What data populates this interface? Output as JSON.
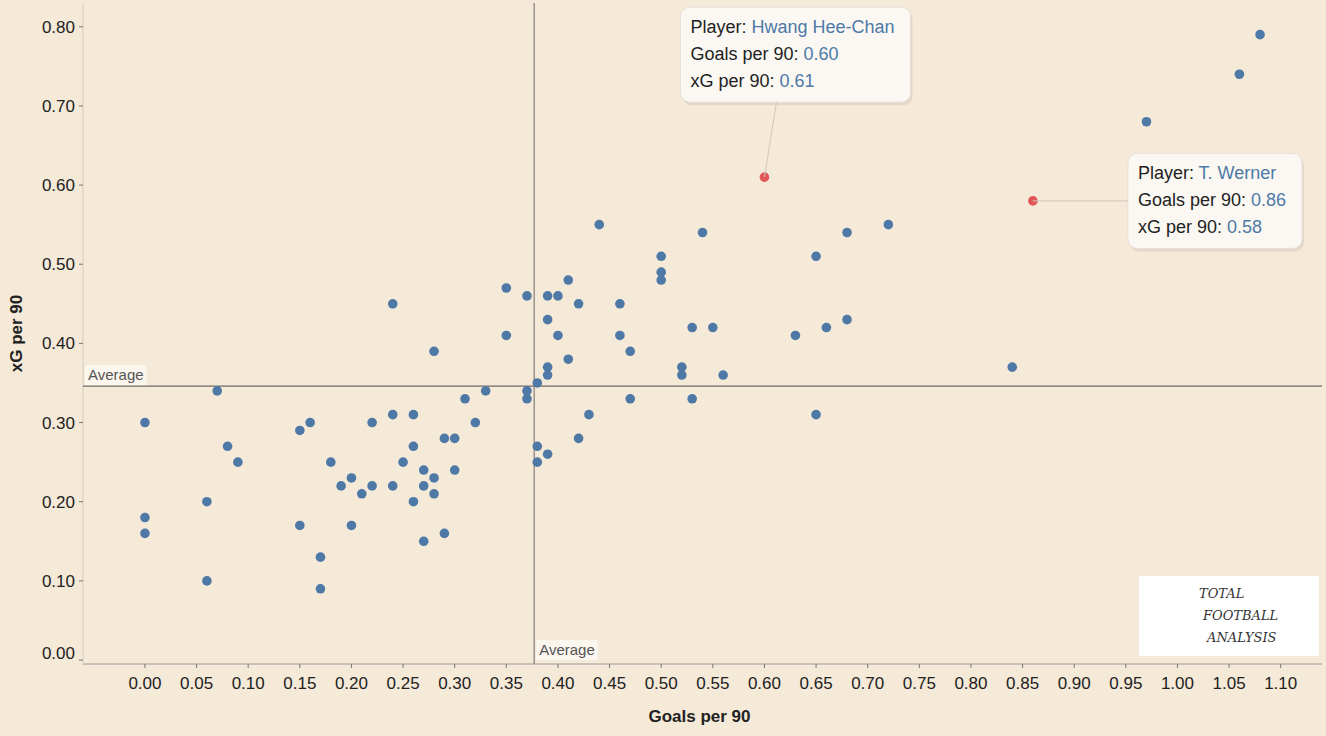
{
  "chart_data": {
    "type": "scatter",
    "x_label": "Goals per 90",
    "y_label": "xG per 90",
    "xlim": [
      -0.06,
      1.14
    ],
    "ylim": [
      -0.005,
      0.83
    ],
    "xticks": [
      {
        "value": 0,
        "label": "0.00"
      },
      {
        "value": 0.05,
        "label": "0.05"
      },
      {
        "value": 0.1,
        "label": "0.10"
      },
      {
        "value": 0.15,
        "label": "0.15"
      },
      {
        "value": 0.2,
        "label": "0.20"
      },
      {
        "value": 0.25,
        "label": "0.25"
      },
      {
        "value": 0.3,
        "label": "0.30"
      },
      {
        "value": 0.35,
        "label": "0.35"
      },
      {
        "value": 0.4,
        "label": "0.40"
      },
      {
        "value": 0.45,
        "label": "0.45"
      },
      {
        "value": 0.5,
        "label": "0.50"
      },
      {
        "value": 0.55,
        "label": "0.55"
      },
      {
        "value": 0.6,
        "label": "0.60"
      },
      {
        "value": 0.65,
        "label": "0.65"
      },
      {
        "value": 0.7,
        "label": "0.70"
      },
      {
        "value": 0.75,
        "label": "0.75"
      },
      {
        "value": 0.8,
        "label": "0.80"
      },
      {
        "value": 0.85,
        "label": "0.85"
      },
      {
        "value": 0.9,
        "label": "0.90"
      },
      {
        "value": 0.95,
        "label": "0.95"
      },
      {
        "value": 1,
        "label": "1.00"
      },
      {
        "value": 1.05,
        "label": "1.05"
      },
      {
        "value": 1.1,
        "label": "1.10"
      }
    ],
    "yticks": [
      {
        "value": 0,
        "label": "0.00"
      },
      {
        "value": 0.1,
        "label": "0.10"
      },
      {
        "value": 0.2,
        "label": "0.20"
      },
      {
        "value": 0.3,
        "label": "0.30"
      },
      {
        "value": 0.4,
        "label": "0.40"
      },
      {
        "value": 0.5,
        "label": "0.50"
      },
      {
        "value": 0.6,
        "label": "0.60"
      },
      {
        "value": 0.7,
        "label": "0.70"
      },
      {
        "value": 0.8,
        "label": "0.80"
      }
    ],
    "grid": false,
    "series": [
      {
        "color": "#4e79a7",
        "marker": "circle",
        "x": [
          0,
          0,
          0,
          0.06,
          0.06,
          0.07,
          0.08,
          0.09,
          0.15,
          0.15,
          0.16,
          0.17,
          0.17,
          0.18,
          0.19,
          0.2,
          0.2,
          0.21,
          0.22,
          0.22,
          0.24,
          0.24,
          0.24,
          0.25,
          0.26,
          0.26,
          0.26,
          0.27,
          0.27,
          0.27,
          0.28,
          0.28,
          0.28,
          0.29,
          0.29,
          0.3,
          0.3,
          0.31,
          0.32,
          0.33,
          0.35,
          0.35,
          0.37,
          0.37,
          0.37,
          0.38,
          0.38,
          0.38,
          0.39,
          0.39,
          0.39,
          0.39,
          0.39,
          0.4,
          0.4,
          0.41,
          0.41,
          0.42,
          0.42,
          0.43,
          0.44,
          0.46,
          0.46,
          0.47,
          0.47,
          0.5,
          0.5,
          0.5,
          0.52,
          0.52,
          0.53,
          0.53,
          0.54,
          0.55,
          0.56,
          0.63,
          0.65,
          0.65,
          0.66,
          0.68,
          0.68,
          0.72,
          0.84,
          0.97,
          1.06,
          1.08
        ],
        "values": [
          0.3,
          0.18,
          0.16,
          0.2,
          0.1,
          0.34,
          0.27,
          0.25,
          0.29,
          0.17,
          0.3,
          0.13,
          0.09,
          0.25,
          0.22,
          0.23,
          0.17,
          0.21,
          0.3,
          0.22,
          0.45,
          0.31,
          0.22,
          0.25,
          0.31,
          0.27,
          0.2,
          0.24,
          0.22,
          0.15,
          0.39,
          0.23,
          0.21,
          0.28,
          0.16,
          0.28,
          0.24,
          0.33,
          0.3,
          0.34,
          0.47,
          0.41,
          0.46,
          0.34,
          0.33,
          0.35,
          0.27,
          0.25,
          0.46,
          0.43,
          0.37,
          0.36,
          0.26,
          0.46,
          0.41,
          0.48,
          0.38,
          0.45,
          0.28,
          0.31,
          0.55,
          0.45,
          0.41,
          0.39,
          0.33,
          0.51,
          0.49,
          0.48,
          0.37,
          0.36,
          0.42,
          0.33,
          0.54,
          0.42,
          0.36,
          0.41,
          0.51,
          0.31,
          0.42,
          0.54,
          0.43,
          0.55,
          0.37,
          0.68,
          0.74,
          0.79
        ]
      },
      {
        "color": "#e15759",
        "marker": "circle",
        "x": [
          0.6,
          0.86
        ],
        "values": [
          0.61,
          0.58
        ]
      }
    ],
    "reference_lines": [
      {
        "axis": "x",
        "value": 0.377,
        "label": "Average"
      },
      {
        "axis": "y",
        "value": 0.346,
        "label": "Average"
      }
    ],
    "annotations": [
      {
        "lines": [
          {
            "key": "Player:",
            "value": "Hwang Hee-Chan"
          },
          {
            "key": "Goals per 90:",
            "value": "0.60"
          },
          {
            "key": "xG per 90:",
            "value": "0.61"
          }
        ]
      },
      {
        "lines": [
          {
            "key": "Player:",
            "value": "T. Werner"
          },
          {
            "key": "Goals per 90:",
            "value": "0.86"
          },
          {
            "key": "xG per 90:",
            "value": "0.58"
          }
        ]
      }
    ],
    "watermark": "TOTAL FOOTBALL ANALYSIS"
  }
}
